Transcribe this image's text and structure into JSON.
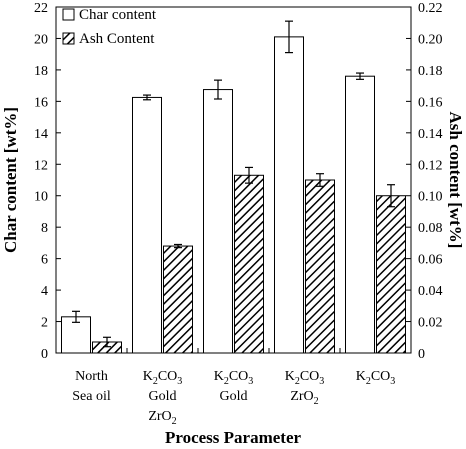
{
  "chart_data": {
    "type": "bar",
    "categories": [
      {
        "lines": [
          "North",
          "Sea oil"
        ]
      },
      {
        "lines": [
          {
            "base": "K",
            "sub": "2",
            "rest": "CO",
            "sub2": "3"
          },
          "Gold",
          {
            "base": "ZrO",
            "sub": "2"
          }
        ]
      },
      {
        "lines": [
          {
            "base": "K",
            "sub": "2",
            "rest": "CO",
            "sub2": "3"
          },
          "Gold"
        ]
      },
      {
        "lines": [
          {
            "base": "K",
            "sub": "2",
            "rest": "CO",
            "sub2": "3"
          },
          {
            "base": "ZrO",
            "sub": "2"
          }
        ]
      },
      {
        "lines": [
          {
            "base": "K",
            "sub": "2",
            "rest": "CO",
            "sub2": "3"
          }
        ]
      }
    ],
    "series": [
      {
        "name": "Char content",
        "axis": "left",
        "pattern": "open",
        "values": [
          2.3,
          16.25,
          16.75,
          20.1,
          17.6
        ],
        "errors": [
          0.35,
          0.15,
          0.6,
          1.0,
          0.2
        ]
      },
      {
        "name": "Ash Content",
        "axis": "right",
        "pattern": "hatched",
        "values": [
          0.007,
          0.068,
          0.113,
          0.11,
          0.1
        ],
        "errors": [
          0.003,
          0.001,
          0.005,
          0.004,
          0.007
        ]
      }
    ],
    "xlabel": "Process Parameter",
    "ylabel": "Char content [wt%]",
    "y2label": "Ash content [wt%]",
    "ylim": [
      0,
      22
    ],
    "y2lim": [
      0,
      0.22
    ],
    "yticks": [
      "0",
      "2",
      "4",
      "6",
      "8",
      "10",
      "12",
      "14",
      "16",
      "18",
      "20",
      "22"
    ],
    "y2ticks": [
      "0",
      "0.02",
      "0.04",
      "0.06",
      "0.08",
      "0.10",
      "0.12",
      "0.14",
      "0.16",
      "0.18",
      "0.20",
      "0.22"
    ],
    "legend_position": "top-left",
    "grid": false
  }
}
